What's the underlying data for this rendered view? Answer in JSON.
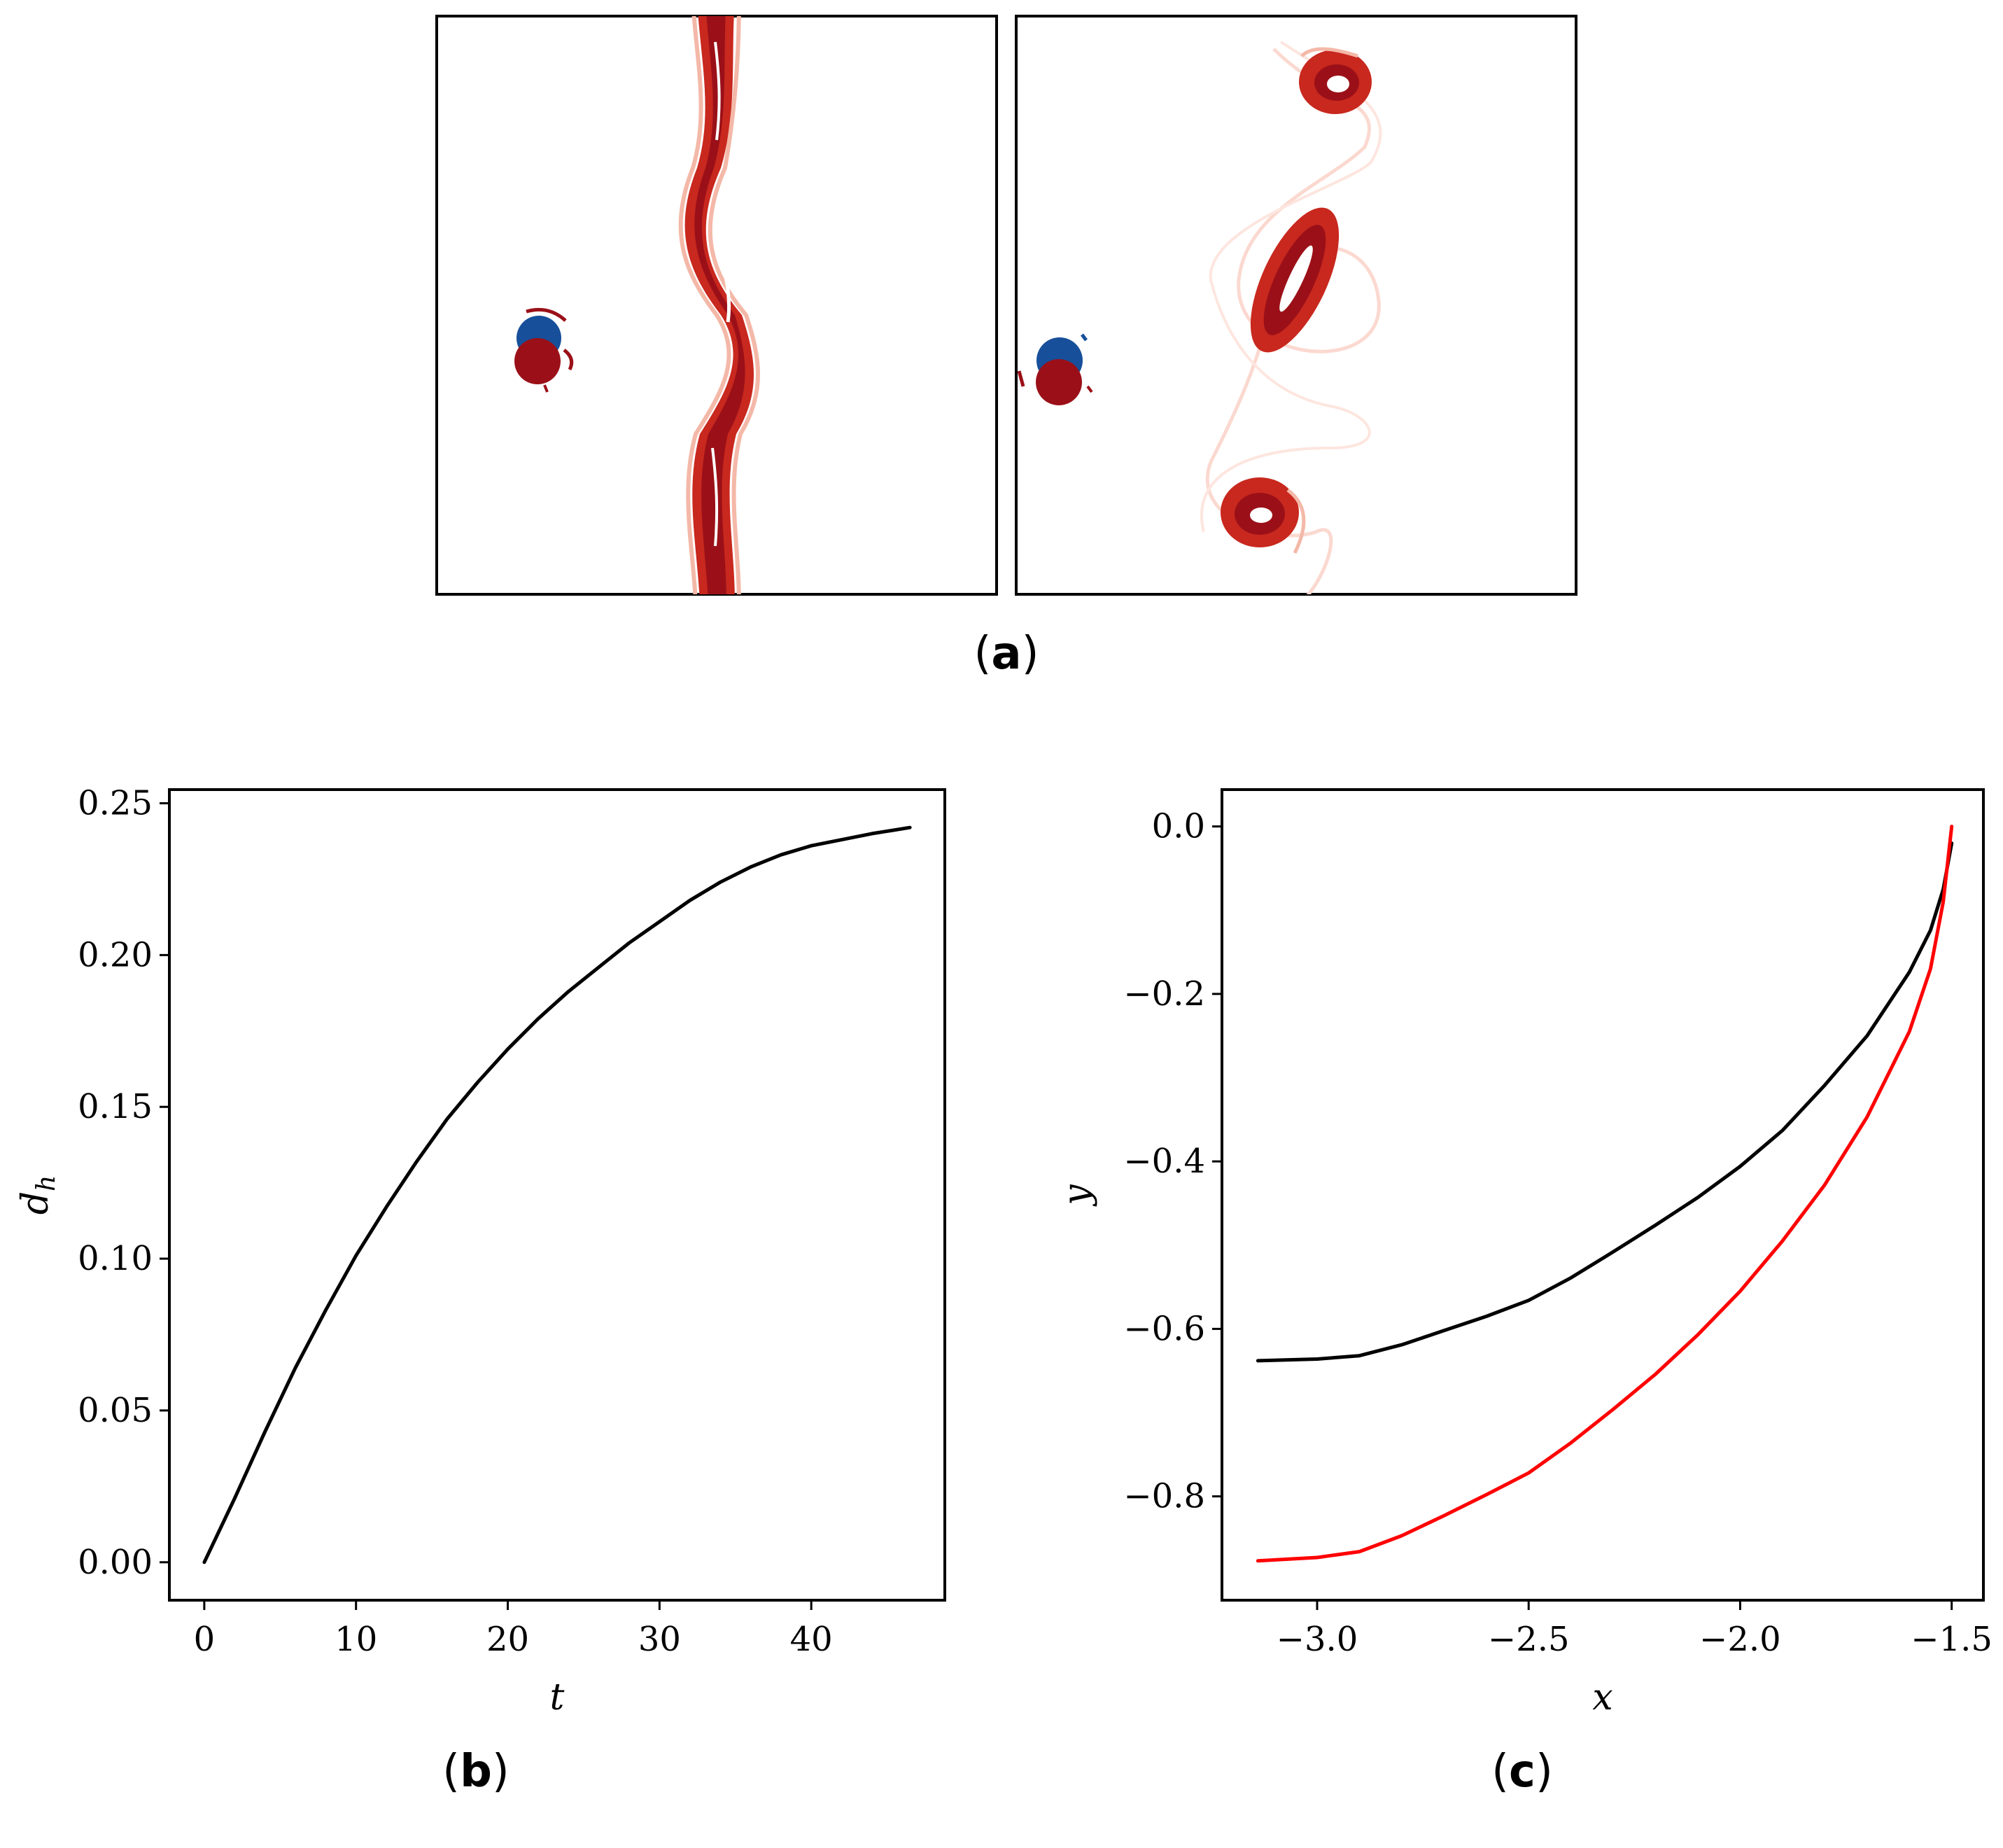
{
  "figure": {
    "panel_labels": [
      {
        "prefix": "(",
        "letter": "a",
        "suffix": ")"
      },
      {
        "prefix": "(",
        "letter": "b",
        "suffix": ")"
      },
      {
        "prefix": "(",
        "letter": "c",
        "suffix": ")"
      }
    ]
  },
  "colors": {
    "red_dark": "#9b1018",
    "red_mid": "#c8281e",
    "red_light": "#f4b8a8",
    "blue": "#174f9a",
    "black_line": "#000000",
    "red_line": "#ff0000"
  },
  "chart_data": [
    {
      "type": "line",
      "panel": "b",
      "xlabel": "t",
      "ylabel": "d",
      "ylabel_sub": "h",
      "xlim": [
        -2.3,
        48.8
      ],
      "ylim": [
        -0.0125,
        0.2545
      ],
      "xticks": [
        0,
        10,
        20,
        30,
        40
      ],
      "xtick_labels": [
        "0",
        "10",
        "20",
        "30",
        "40"
      ],
      "yticks": [
        0.0,
        0.05,
        0.1,
        0.15,
        0.2,
        0.25
      ],
      "ytick_labels": [
        "0.00",
        "0.05",
        "0.10",
        "0.15",
        "0.20",
        "0.25"
      ],
      "series": [
        {
          "name": "d_h",
          "color": "#000000",
          "x": [
            0,
            2,
            4,
            6,
            8,
            10,
            12,
            14,
            16,
            18,
            20,
            22,
            24,
            26,
            28,
            30,
            32,
            34,
            36,
            38,
            40,
            42,
            44,
            46.5
          ],
          "y": [
            0.0,
            0.021,
            0.043,
            0.064,
            0.083,
            0.101,
            0.117,
            0.132,
            0.146,
            0.158,
            0.169,
            0.179,
            0.188,
            0.196,
            0.204,
            0.211,
            0.218,
            0.224,
            0.229,
            0.233,
            0.236,
            0.238,
            0.24,
            0.242
          ]
        }
      ]
    },
    {
      "type": "line",
      "panel": "c",
      "xlabel": "x",
      "ylabel": "y",
      "xlim": [
        -3.225,
        -1.425
      ],
      "ylim": [
        -0.924,
        0.044
      ],
      "xticks": [
        -3.0,
        -2.5,
        -2.0,
        -1.5
      ],
      "xtick_labels": [
        "−3.0",
        "−2.5",
        "−2.0",
        "−1.5"
      ],
      "yticks": [
        0.0,
        -0.2,
        -0.4,
        -0.6,
        -0.8
      ],
      "ytick_labels": [
        "0.0",
        "−0.2",
        "−0.4",
        "−0.6",
        "−0.8"
      ],
      "series": [
        {
          "name": "black trajectory",
          "color": "#000000",
          "x": [
            -3.14,
            -3.0,
            -2.9,
            -2.8,
            -2.7,
            -2.6,
            -2.5,
            -2.4,
            -2.3,
            -2.2,
            -2.1,
            -2.0,
            -1.9,
            -1.8,
            -1.7,
            -1.6,
            -1.55,
            -1.52,
            -1.5
          ],
          "y": [
            -0.638,
            -0.636,
            -0.632,
            -0.619,
            -0.602,
            -0.585,
            -0.566,
            -0.539,
            -0.508,
            -0.476,
            -0.443,
            -0.406,
            -0.363,
            -0.309,
            -0.25,
            -0.174,
            -0.124,
            -0.075,
            -0.02
          ]
        },
        {
          "name": "red trajectory",
          "color": "#ff0000",
          "x": [
            -3.14,
            -3.0,
            -2.9,
            -2.8,
            -2.7,
            -2.6,
            -2.5,
            -2.4,
            -2.3,
            -2.2,
            -2.1,
            -2.0,
            -1.9,
            -1.8,
            -1.7,
            -1.6,
            -1.55,
            -1.52,
            -1.5
          ],
          "y": [
            -0.877,
            -0.873,
            -0.866,
            -0.847,
            -0.823,
            -0.798,
            -0.772,
            -0.736,
            -0.696,
            -0.654,
            -0.607,
            -0.555,
            -0.495,
            -0.428,
            -0.347,
            -0.245,
            -0.17,
            -0.09,
            0.0
          ]
        }
      ]
    }
  ]
}
